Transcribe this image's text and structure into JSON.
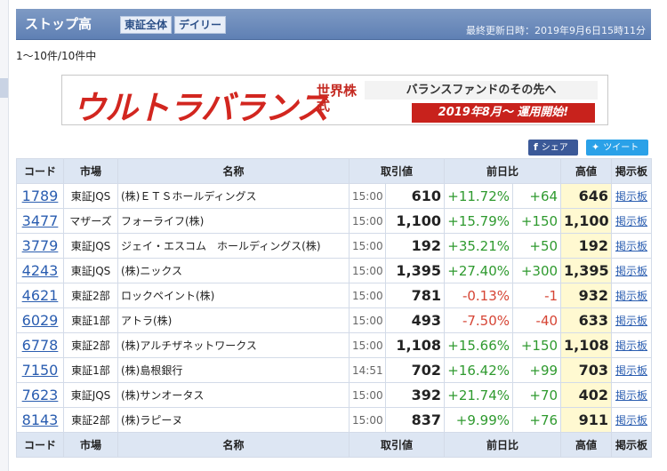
{
  "header": {
    "title": "ストップ高",
    "chip_market": "東証全体",
    "chip_period": "デイリー",
    "updated": "最終更新日時：2019年9月6日15時11分"
  },
  "count": "1〜10件/10件中",
  "banner": {
    "brand": "ウルトラバランス",
    "sub": "世界株式",
    "tagline": "バランスファンドのその先へ",
    "launch": "2019年8月〜 運用開始!"
  },
  "share": {
    "facebook_icon": "f",
    "facebook": "シェア",
    "twitter": "ツイート"
  },
  "table": {
    "headers": {
      "code": "コード",
      "market": "市場",
      "name": "名称",
      "price": "取引値",
      "change": "前日比",
      "high": "高値",
      "board": "掲示板"
    },
    "rows": [
      {
        "code": "1789",
        "market": "東証JQS",
        "name": "(株)ＥＴＳホールディングス",
        "time": "15:00",
        "price": "610",
        "pct": "+11.72%",
        "diff": "+64",
        "high": "646",
        "board": "掲示板",
        "dir": "up"
      },
      {
        "code": "3477",
        "market": "マザーズ",
        "name": "フォーライフ(株)",
        "time": "15:00",
        "price": "1,100",
        "pct": "+15.79%",
        "diff": "+150",
        "high": "1,100",
        "board": "掲示板",
        "dir": "up"
      },
      {
        "code": "3779",
        "market": "東証JQS",
        "name": "ジェイ・エスコム　ホールディングス(株)",
        "time": "15:00",
        "price": "192",
        "pct": "+35.21%",
        "diff": "+50",
        "high": "192",
        "board": "掲示板",
        "dir": "up"
      },
      {
        "code": "4243",
        "market": "東証JQS",
        "name": "(株)ニックス",
        "time": "15:00",
        "price": "1,395",
        "pct": "+27.40%",
        "diff": "+300",
        "high": "1,395",
        "board": "掲示板",
        "dir": "up"
      },
      {
        "code": "4621",
        "market": "東証2部",
        "name": "ロックペイント(株)",
        "time": "15:00",
        "price": "781",
        "pct": "-0.13%",
        "diff": "-1",
        "high": "932",
        "board": "掲示板",
        "dir": "down"
      },
      {
        "code": "6029",
        "market": "東証1部",
        "name": "アトラ(株)",
        "time": "15:00",
        "price": "493",
        "pct": "-7.50%",
        "diff": "-40",
        "high": "633",
        "board": "掲示板",
        "dir": "down"
      },
      {
        "code": "6778",
        "market": "東証2部",
        "name": "(株)アルチザネットワークス",
        "time": "15:00",
        "price": "1,108",
        "pct": "+15.66%",
        "diff": "+150",
        "high": "1,108",
        "board": "掲示板",
        "dir": "up"
      },
      {
        "code": "7150",
        "market": "東証1部",
        "name": "(株)島根銀行",
        "time": "14:51",
        "price": "702",
        "pct": "+16.42%",
        "diff": "+99",
        "high": "703",
        "board": "掲示板",
        "dir": "up"
      },
      {
        "code": "7623",
        "market": "東証JQS",
        "name": "(株)サンオータス",
        "time": "15:00",
        "price": "392",
        "pct": "+21.74%",
        "diff": "+70",
        "high": "402",
        "board": "掲示板",
        "dir": "up"
      },
      {
        "code": "8143",
        "market": "東証2部",
        "name": "(株)ラピーヌ",
        "time": "15:00",
        "price": "837",
        "pct": "+9.99%",
        "diff": "+76",
        "high": "911",
        "board": "掲示板",
        "dir": "up"
      }
    ]
  },
  "colors": {
    "up": "#2f9a2f",
    "down": "#d64535",
    "high_bg": "#fff9d1",
    "header_bg": "#6b8bbd"
  }
}
